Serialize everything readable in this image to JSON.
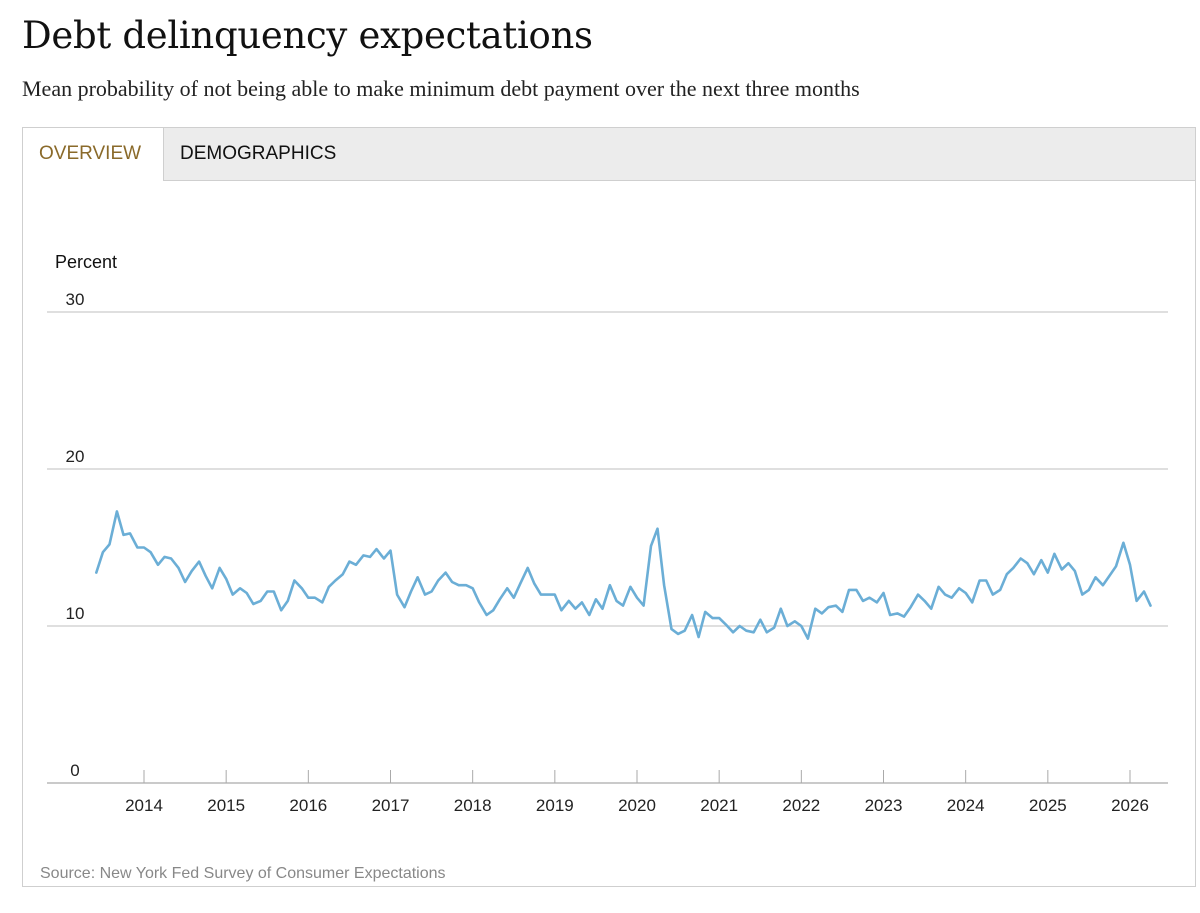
{
  "header": {
    "title": "Debt delinquency expectations",
    "subtitle": "Mean probability of not being able to make minimum debt payment over the next three months"
  },
  "tabs": [
    {
      "label": "OVERVIEW",
      "active": true
    },
    {
      "label": "DEMOGRAPHICS",
      "active": false
    }
  ],
  "source": "Source: New York Fed Survey of Consumer Expectations",
  "colors": {
    "line": "#6baed6",
    "active_tab": "#8a6a2a",
    "grid": "#cccccc"
  },
  "chart_data": {
    "type": "line",
    "title": "",
    "ylabel": "Percent",
    "xlabel": "",
    "ylim": [
      0,
      30
    ],
    "yticks": [
      0,
      10,
      20,
      30
    ],
    "xlim": [
      2013.3,
      2026.5
    ],
    "xticks": [
      2014,
      2015,
      2016,
      2017,
      2018,
      2019,
      2020,
      2021,
      2022,
      2023,
      2024,
      2025,
      2026
    ],
    "grid": true,
    "series": [
      {
        "name": "",
        "x": [
          2013.42,
          2013.5,
          2013.58,
          2013.67,
          2013.75,
          2013.83,
          2013.92,
          2014.0,
          2014.08,
          2014.17,
          2014.25,
          2014.33,
          2014.42,
          2014.5,
          2014.58,
          2014.67,
          2014.75,
          2014.83,
          2014.92,
          2015.0,
          2015.08,
          2015.17,
          2015.25,
          2015.33,
          2015.42,
          2015.5,
          2015.58,
          2015.67,
          2015.75,
          2015.83,
          2015.92,
          2016.0,
          2016.08,
          2016.17,
          2016.25,
          2016.33,
          2016.42,
          2016.5,
          2016.58,
          2016.67,
          2016.75,
          2016.83,
          2016.92,
          2017.0,
          2017.08,
          2017.17,
          2017.25,
          2017.33,
          2017.42,
          2017.5,
          2017.58,
          2017.67,
          2017.75,
          2017.83,
          2017.92,
          2018.0,
          2018.08,
          2018.17,
          2018.25,
          2018.33,
          2018.42,
          2018.5,
          2018.58,
          2018.67,
          2018.75,
          2018.83,
          2018.92,
          2019.0,
          2019.08,
          2019.17,
          2019.25,
          2019.33,
          2019.42,
          2019.5,
          2019.58,
          2019.67,
          2019.75,
          2019.83,
          2019.92,
          2020.0,
          2020.08,
          2020.17,
          2020.25,
          2020.33,
          2020.42,
          2020.5,
          2020.58,
          2020.67,
          2020.75,
          2020.83,
          2020.92,
          2021.0,
          2021.08,
          2021.17,
          2021.25,
          2021.33,
          2021.42,
          2021.5,
          2021.58,
          2021.67,
          2021.75,
          2021.83,
          2021.92,
          2022.0,
          2022.08,
          2022.17,
          2022.25,
          2022.33,
          2022.42,
          2022.5,
          2022.58,
          2022.67,
          2022.75,
          2022.83,
          2022.92,
          2023.0,
          2023.08,
          2023.17,
          2023.25,
          2023.33,
          2023.42,
          2023.5,
          2023.58,
          2023.67,
          2023.75,
          2023.83,
          2023.92,
          2024.0,
          2024.08,
          2024.17,
          2024.25,
          2024.33,
          2024.42,
          2024.5,
          2024.58,
          2024.67,
          2024.75,
          2024.83,
          2024.92,
          2025.0,
          2025.08,
          2025.17,
          2025.25,
          2025.33,
          2025.42,
          2025.5,
          2025.58,
          2025.67,
          2025.75,
          2025.83,
          2025.92,
          2026.0,
          2026.08,
          2026.17,
          2026.25
        ],
        "y": [
          13.4,
          14.7,
          15.2,
          17.3,
          15.8,
          15.9,
          15.0,
          15.0,
          14.7,
          13.9,
          14.4,
          14.3,
          13.7,
          12.8,
          13.5,
          14.1,
          13.2,
          12.4,
          13.7,
          13.0,
          12.0,
          12.4,
          12.1,
          11.4,
          11.6,
          12.2,
          12.2,
          11.0,
          11.6,
          12.9,
          12.4,
          11.8,
          11.8,
          11.5,
          12.5,
          12.9,
          13.3,
          14.1,
          13.9,
          14.5,
          14.4,
          14.9,
          14.3,
          14.8,
          12.0,
          11.2,
          12.2,
          13.1,
          12.0,
          12.2,
          12.9,
          13.4,
          12.8,
          12.6,
          12.6,
          12.4,
          11.5,
          10.7,
          11.0,
          11.7,
          12.4,
          11.8,
          12.7,
          13.7,
          12.7,
          12.0,
          12.0,
          12.0,
          11.0,
          11.6,
          11.1,
          11.5,
          10.7,
          11.7,
          11.1,
          12.6,
          11.6,
          11.3,
          12.5,
          11.8,
          11.3,
          15.1,
          16.2,
          12.6,
          9.8,
          9.5,
          9.7,
          10.7,
          9.3,
          10.9,
          10.5,
          10.5,
          10.1,
          9.6,
          10.0,
          9.7,
          9.6,
          10.4,
          9.6,
          9.9,
          11.1,
          10.0,
          10.3,
          10.0,
          9.2,
          11.1,
          10.8,
          11.2,
          11.3,
          10.9,
          12.3,
          12.3,
          11.6,
          11.8,
          11.5,
          12.1,
          10.7,
          10.8,
          10.6,
          11.2,
          12.0,
          11.6,
          11.1,
          12.5,
          12.0,
          11.8,
          12.4,
          12.1,
          11.5,
          12.9,
          12.9,
          12.0,
          12.3,
          13.3,
          13.7,
          14.3,
          14.0,
          13.3,
          14.2,
          13.4,
          14.6,
          13.6,
          14.0,
          13.5,
          12.0,
          12.3,
          13.1,
          12.6,
          13.2,
          13.8,
          15.3,
          13.9,
          11.6,
          12.2,
          11.3
        ]
      }
    ]
  }
}
